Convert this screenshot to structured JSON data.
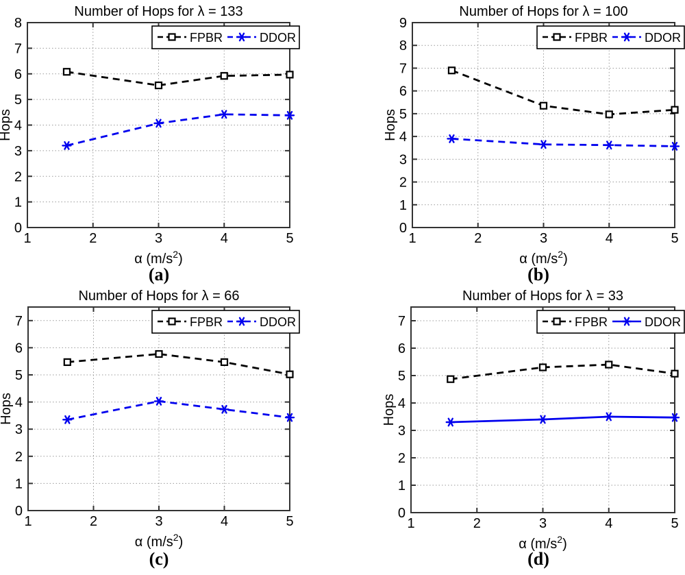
{
  "figure": {
    "background": "#ffffff",
    "text_color": "#000000",
    "axis_color": "#333333",
    "grid_color": "#999999"
  },
  "chart_data": [
    {
      "id": "a",
      "type": "line",
      "title": "Number of Hops for λ = 133",
      "xlabel": {
        "pre": "α (m/s",
        "sup": "2",
        "post": ")"
      },
      "ylabel": "Hops",
      "caption": "(a)",
      "xlim": [
        1,
        5
      ],
      "ylim": [
        0,
        8
      ],
      "xticks": [
        1,
        2,
        3,
        4,
        5
      ],
      "yticks": [
        0,
        1,
        2,
        3,
        4,
        5,
        6,
        7,
        8
      ],
      "grid": true,
      "legend_position": "top-right",
      "x": [
        1.6,
        3,
        4,
        5
      ],
      "series": [
        {
          "name": "FPBR",
          "values": [
            6.08,
            5.55,
            5.92,
            5.97
          ],
          "color": "#000000",
          "dash": true,
          "marker": "square"
        },
        {
          "name": "DDOR",
          "values": [
            3.2,
            4.07,
            4.42,
            4.38
          ],
          "color": "#0000ee",
          "dash": true,
          "marker": "star"
        }
      ]
    },
    {
      "id": "b",
      "type": "line",
      "title": "Number of Hops for λ = 100",
      "xlabel": {
        "pre": "α (m/s",
        "sup": "2",
        "post": ")"
      },
      "ylabel": "Hops",
      "caption": "(b)",
      "xlim": [
        1,
        5
      ],
      "ylim": [
        0,
        9
      ],
      "xticks": [
        1,
        2,
        3,
        4,
        5
      ],
      "yticks": [
        0,
        1,
        2,
        3,
        4,
        5,
        6,
        7,
        8,
        9
      ],
      "grid": true,
      "legend_position": "top-right",
      "x": [
        1.6,
        3,
        4,
        5
      ],
      "series": [
        {
          "name": "FPBR",
          "values": [
            6.9,
            5.35,
            4.97,
            5.17
          ],
          "color": "#000000",
          "dash": true,
          "marker": "square"
        },
        {
          "name": "DDOR",
          "values": [
            3.9,
            3.65,
            3.62,
            3.57
          ],
          "color": "#0000ee",
          "dash": true,
          "marker": "star"
        }
      ]
    },
    {
      "id": "c",
      "type": "line",
      "title": "Number of Hops for λ = 66",
      "xlabel": {
        "pre": "α (m/s",
        "sup": "2",
        "post": ")"
      },
      "ylabel": "Hops",
      "caption": "(c)",
      "xlim": [
        1,
        5
      ],
      "ylim": [
        0,
        7.5
      ],
      "xticks": [
        1,
        2,
        3,
        4,
        5
      ],
      "yticks": [
        0,
        1,
        2,
        3,
        4,
        5,
        6,
        7
      ],
      "grid": true,
      "legend_position": "top-right",
      "x": [
        1.6,
        3,
        4,
        5
      ],
      "series": [
        {
          "name": "FPBR",
          "values": [
            5.47,
            5.77,
            5.47,
            5.02
          ],
          "color": "#000000",
          "dash": true,
          "marker": "square"
        },
        {
          "name": "DDOR",
          "values": [
            3.35,
            4.03,
            3.73,
            3.43
          ],
          "color": "#0000ee",
          "dash": true,
          "marker": "star"
        }
      ]
    },
    {
      "id": "d",
      "type": "line",
      "title": "Number of Hops for λ = 33",
      "xlabel": {
        "pre": "α (m/s",
        "sup": "2",
        "post": ")"
      },
      "ylabel": "Hops",
      "caption": "(d)",
      "xlim": [
        1,
        5
      ],
      "ylim": [
        0,
        7.5
      ],
      "xticks": [
        1,
        2,
        3,
        4,
        5
      ],
      "yticks": [
        0,
        1,
        2,
        3,
        4,
        5,
        6,
        7
      ],
      "grid": true,
      "legend_position": "top-right",
      "x": [
        1.6,
        3,
        4,
        5
      ],
      "series": [
        {
          "name": "FPBR",
          "values": [
            4.87,
            5.3,
            5.4,
            5.07
          ],
          "color": "#000000",
          "dash": true,
          "marker": "square"
        },
        {
          "name": "DDOR",
          "values": [
            3.3,
            3.4,
            3.5,
            3.47
          ],
          "color": "#0000ee",
          "dash": false,
          "marker": "star"
        }
      ]
    }
  ]
}
